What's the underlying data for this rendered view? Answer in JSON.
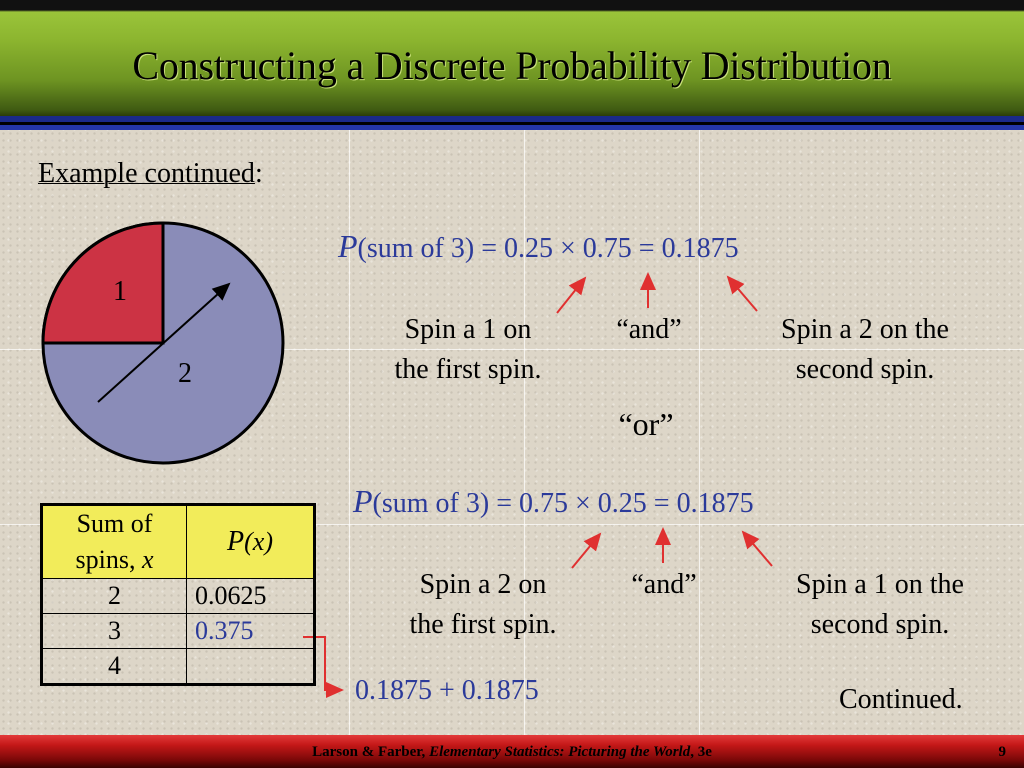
{
  "title": "Constructing a Discrete Probability Distribution",
  "example_label": "Example continued",
  "example_colon": ":",
  "spinner": {
    "label_1": "1",
    "label_2": "2",
    "color_1": "#cc3344",
    "color_2": "#8a8cb8"
  },
  "formula_1": {
    "p": "P",
    "text": "(sum of 3) = 0.25 ×  0.75 = 0.1875"
  },
  "labels_1": {
    "left": [
      "Spin a 1 on",
      "the first spin."
    ],
    "middle": "“and”",
    "right": [
      "Spin a 2 on the",
      "second spin."
    ]
  },
  "or_label": "“or”",
  "formula_2": {
    "p": "P",
    "text": "(sum of 3) = 0.75 ×  0.25 = 0.1875"
  },
  "labels_2": {
    "left": [
      "Spin a 2 on",
      "the first spin."
    ],
    "middle": "“and”",
    "right": [
      "Spin a 1 on the",
      "second spin."
    ]
  },
  "table": {
    "header_x": [
      "Sum of",
      "spins, "
    ],
    "header_x_var": "x",
    "header_p": "P",
    "header_p_arg": "(x)",
    "rows": [
      {
        "x": "2",
        "p": "0.0625"
      },
      {
        "x": "3",
        "p": "0.375"
      },
      {
        "x": "4",
        "p": ""
      }
    ]
  },
  "sum_expression": "0.1875 + 0.1875",
  "continued": "Continued.",
  "footer": {
    "authors": "Larson & Farber, ",
    "book": "Elementary Statistics: Picturing the World",
    "edition": ", 3e",
    "page": "9"
  },
  "colors": {
    "accent_blue": "#2b3a9a",
    "arrow_red": "#e03030",
    "header_yellow": "#f2ec5a"
  }
}
